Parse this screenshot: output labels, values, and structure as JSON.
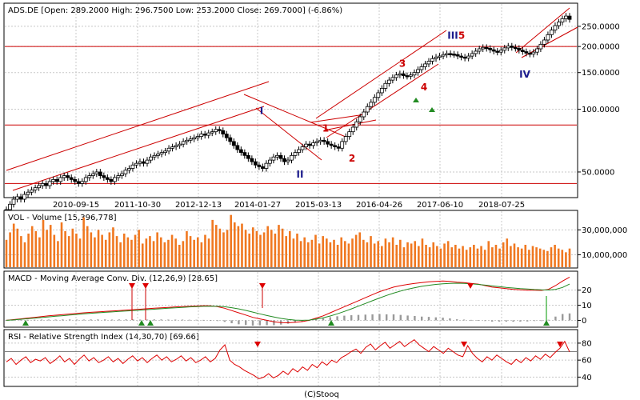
{
  "chart_data": [
    {
      "type": "candlestick",
      "title": "ADS.DE [Open: 289.2000  High: 296.7500  Low: 253.2000  Close: 269.7000]  (-6.86%)",
      "y_scale": "log",
      "ylim": [
        38,
        320
      ],
      "y_ticks": [
        "250.0000",
        "200.0000",
        "150.0000",
        "100.0000",
        "50.0000"
      ],
      "y_tick_values": [
        250,
        200,
        150,
        100,
        50
      ],
      "x_ticks": [
        "2010-09-15",
        "2011-10-30",
        "2012-12-13",
        "2014-01-27",
        "2015-03-13",
        "2016-04-26",
        "2017-06-10",
        "2018-07-25"
      ],
      "hlines": [
        200,
        84,
        44
      ],
      "closes": [
        33,
        35,
        37,
        38,
        37,
        39,
        40,
        41,
        42,
        43,
        44,
        43,
        45,
        46,
        45,
        47,
        48,
        47,
        46,
        45,
        44,
        45,
        47,
        48,
        49,
        50,
        48,
        47,
        46,
        45,
        47,
        48,
        49,
        51,
        52,
        54,
        55,
        56,
        55,
        57,
        59,
        60,
        61,
        62,
        63,
        65,
        66,
        67,
        68,
        70,
        71,
        72,
        73,
        74,
        76,
        75,
        77,
        78,
        80,
        79,
        76,
        73,
        70,
        67,
        64,
        62,
        60,
        58,
        56,
        54,
        53,
        52,
        55,
        57,
        59,
        60,
        58,
        56,
        57,
        60,
        62,
        64,
        66,
        68,
        67,
        69,
        70,
        71,
        70,
        68,
        67,
        66,
        65,
        70,
        74,
        78,
        82,
        87,
        92,
        97,
        103,
        108,
        114,
        120,
        126,
        133,
        138,
        142,
        146,
        148,
        145,
        144,
        146,
        150,
        155,
        160,
        165,
        170,
        175,
        178,
        180,
        183,
        185,
        184,
        183,
        180,
        178,
        176,
        180,
        185,
        190,
        195,
        198,
        196,
        193,
        190,
        188,
        192,
        197,
        201,
        198,
        196,
        192,
        189,
        186,
        184,
        188,
        195,
        205,
        215,
        228,
        240,
        252,
        262,
        272,
        280,
        270
      ],
      "waves": [
        {
          "label": "I",
          "price": 95,
          "color": "blue"
        },
        {
          "label": "II",
          "price": 47,
          "color": "blue"
        },
        {
          "label": "1",
          "price": 78,
          "color": "red"
        },
        {
          "label": "2",
          "price": 56,
          "color": "red"
        },
        {
          "label": "3",
          "price": 160,
          "color": "red"
        },
        {
          "label": "4",
          "price": 123,
          "color": "red"
        },
        {
          "label": "III",
          "price": 218,
          "color": "blue"
        },
        {
          "label": "5",
          "price": 218,
          "color": "red"
        },
        {
          "label": "IV",
          "price": 142,
          "color": "blue"
        }
      ]
    },
    {
      "type": "bar",
      "title": "VOL - Volume [15,396,778]",
      "y_ticks": [
        "30,000,000",
        "10,000,000"
      ],
      "y_tick_values": [
        30000000,
        10000000
      ],
      "ylim": [
        0,
        45000000
      ],
      "values": [
        22,
        28,
        35,
        31,
        25,
        20,
        27,
        33,
        29,
        24,
        38,
        30,
        34,
        26,
        21,
        36,
        29,
        25,
        31,
        27,
        23,
        40,
        33,
        28,
        24,
        30,
        26,
        22,
        28,
        32,
        25,
        20,
        27,
        24,
        22,
        26,
        30,
        19,
        23,
        25,
        21,
        28,
        24,
        20,
        22,
        26,
        23,
        18,
        21,
        29,
        25,
        22,
        24,
        20,
        26,
        23,
        38,
        34,
        31,
        28,
        30,
        42,
        36,
        33,
        35,
        30,
        27,
        32,
        29,
        26,
        28,
        33,
        30,
        27,
        34,
        31,
        25,
        29,
        23,
        27,
        21,
        24,
        20,
        22,
        26,
        19,
        25,
        23,
        20,
        22,
        18,
        24,
        21,
        19,
        23,
        26,
        28,
        22,
        20,
        25,
        19,
        21,
        17,
        23,
        20,
        24,
        18,
        22,
        16,
        20,
        19,
        21,
        17,
        23,
        18,
        16,
        20,
        17,
        15,
        19,
        21,
        16,
        18,
        15,
        17,
        14,
        16,
        18,
        15,
        17,
        14,
        21,
        16,
        18,
        15,
        20,
        23,
        17,
        19,
        16,
        15,
        18,
        14,
        17,
        16,
        15,
        14,
        13,
        16,
        18,
        15,
        14,
        12,
        15
      ]
    },
    {
      "type": "line",
      "title": "MACD - Moving Average Conv. Div. (12,26,9) [28.65]",
      "y_ticks": [
        "20",
        "10",
        "0"
      ],
      "y_tick_values": [
        20,
        10,
        0
      ],
      "ylim": [
        -4,
        32
      ],
      "series": [
        {
          "values": [
            0,
            0.5,
            1,
            1.5,
            2,
            2.5,
            3,
            3.4,
            3.8,
            4.2,
            4.6,
            5,
            5.3,
            5.6,
            5.9,
            6.2,
            6.5,
            6.8,
            7.1,
            7.4,
            7.7,
            8,
            8.3,
            8.6,
            8.9,
            9.1,
            9.3,
            9.5,
            9.7,
            9.6,
            9,
            8,
            6.5,
            5,
            3.5,
            2,
            1,
            0,
            -1,
            -1.5,
            -1.6,
            -1.3,
            -0.8,
            0,
            1.5,
            3,
            5,
            7,
            9,
            11,
            13,
            15,
            17,
            19,
            20.5,
            22,
            23,
            23.8,
            24.5,
            25,
            25.5,
            25.8,
            26,
            25.8,
            25.3,
            25,
            24.5,
            24,
            23,
            22,
            21.5,
            21,
            20.5,
            20.2,
            20,
            20,
            19.8,
            20.5,
            23,
            26,
            28.6
          ]
        },
        {
          "values": [
            0,
            0.3,
            0.7,
            1.1,
            1.5,
            1.9,
            2.3,
            2.7,
            3.1,
            3.5,
            3.9,
            4.3,
            4.7,
            5,
            5.3,
            5.6,
            5.9,
            6.2,
            6.5,
            6.8,
            7.1,
            7.4,
            7.7,
            8,
            8.3,
            8.6,
            8.9,
            9.1,
            9.3,
            9.4,
            9.3,
            9,
            8.4,
            7.6,
            6.6,
            5.5,
            4.3,
            3.2,
            2.2,
            1.3,
            0.6,
            0.2,
            0,
            0.2,
            0.8,
            1.7,
            2.9,
            4.3,
            5.9,
            7.6,
            9.4,
            11.2,
            13,
            14.8,
            16.5,
            18,
            19.4,
            20.6,
            21.6,
            22.5,
            23.2,
            23.8,
            24.2,
            24.5,
            24.6,
            24.5,
            24.2,
            23.8,
            23.3,
            22.8,
            22.3,
            21.8,
            21.4,
            21,
            20.7,
            20.4,
            20.2,
            20.1,
            20.5,
            21.8,
            24
          ]
        }
      ],
      "hist": [
        0.3,
        0.3,
        0.4,
        0.4,
        0.4,
        0.5,
        0.5,
        0.5,
        0.6,
        0.6,
        0.5,
        0.5,
        0.6,
        0.6,
        0.6,
        0.5,
        0.6,
        0.6,
        0.6,
        0.5,
        0.5,
        0.6,
        0.6,
        0.5,
        0.5,
        0.5,
        0.4,
        0.4,
        0.3,
        0.2,
        -0.3,
        -1,
        -1.9,
        -2.6,
        -3.1,
        -3.5,
        -3.3,
        -3.2,
        -3.2,
        -2.8,
        -2.2,
        -1.5,
        -0.8,
        -0.2,
        0.7,
        1.3,
        2.1,
        2.7,
        3.1,
        3.4,
        3.6,
        3.8,
        4,
        4.2,
        4,
        4,
        3.6,
        3.2,
        2.9,
        2.5,
        2.3,
        2,
        1.8,
        1.3,
        0.7,
        0.5,
        0.3,
        0.2,
        -0.3,
        -0.8,
        -0.8,
        -0.8,
        -0.9,
        -0.8,
        -0.7,
        -0.4,
        -0.4,
        0.4,
        2.5,
        4.2,
        4.6
      ]
    },
    {
      "type": "line",
      "title": "RSI - Relative Strength Index (14,30,70) [69.66]",
      "y_ticks": [
        "80",
        "60",
        "40"
      ],
      "y_tick_values": [
        80,
        60,
        40
      ],
      "ylim": [
        30,
        95
      ],
      "hlines": [
        70
      ],
      "series": [
        {
          "values": [
            58,
            62,
            55,
            60,
            64,
            57,
            61,
            59,
            63,
            56,
            60,
            65,
            58,
            62,
            55,
            61,
            66,
            59,
            63,
            57,
            60,
            64,
            58,
            62,
            56,
            61,
            65,
            59,
            63,
            57,
            62,
            66,
            60,
            64,
            58,
            61,
            65,
            59,
            63,
            57,
            60,
            64,
            58,
            62,
            72,
            78,
            60,
            55,
            52,
            48,
            45,
            42,
            38,
            40,
            44,
            39,
            42,
            47,
            43,
            50,
            46,
            52,
            48,
            55,
            51,
            58,
            54,
            60,
            57,
            63,
            66,
            70,
            73,
            68,
            75,
            79,
            72,
            77,
            81,
            74,
            78,
            82,
            76,
            80,
            84,
            78,
            74,
            70,
            76,
            72,
            68,
            74,
            70,
            66,
            64,
            77,
            68,
            62,
            58,
            64,
            60,
            66,
            62,
            58,
            55,
            61,
            57,
            63,
            59,
            65,
            61,
            67,
            63,
            69,
            74,
            82,
            69.66
          ]
        }
      ]
    }
  ],
  "footer": "(C)Stooq"
}
